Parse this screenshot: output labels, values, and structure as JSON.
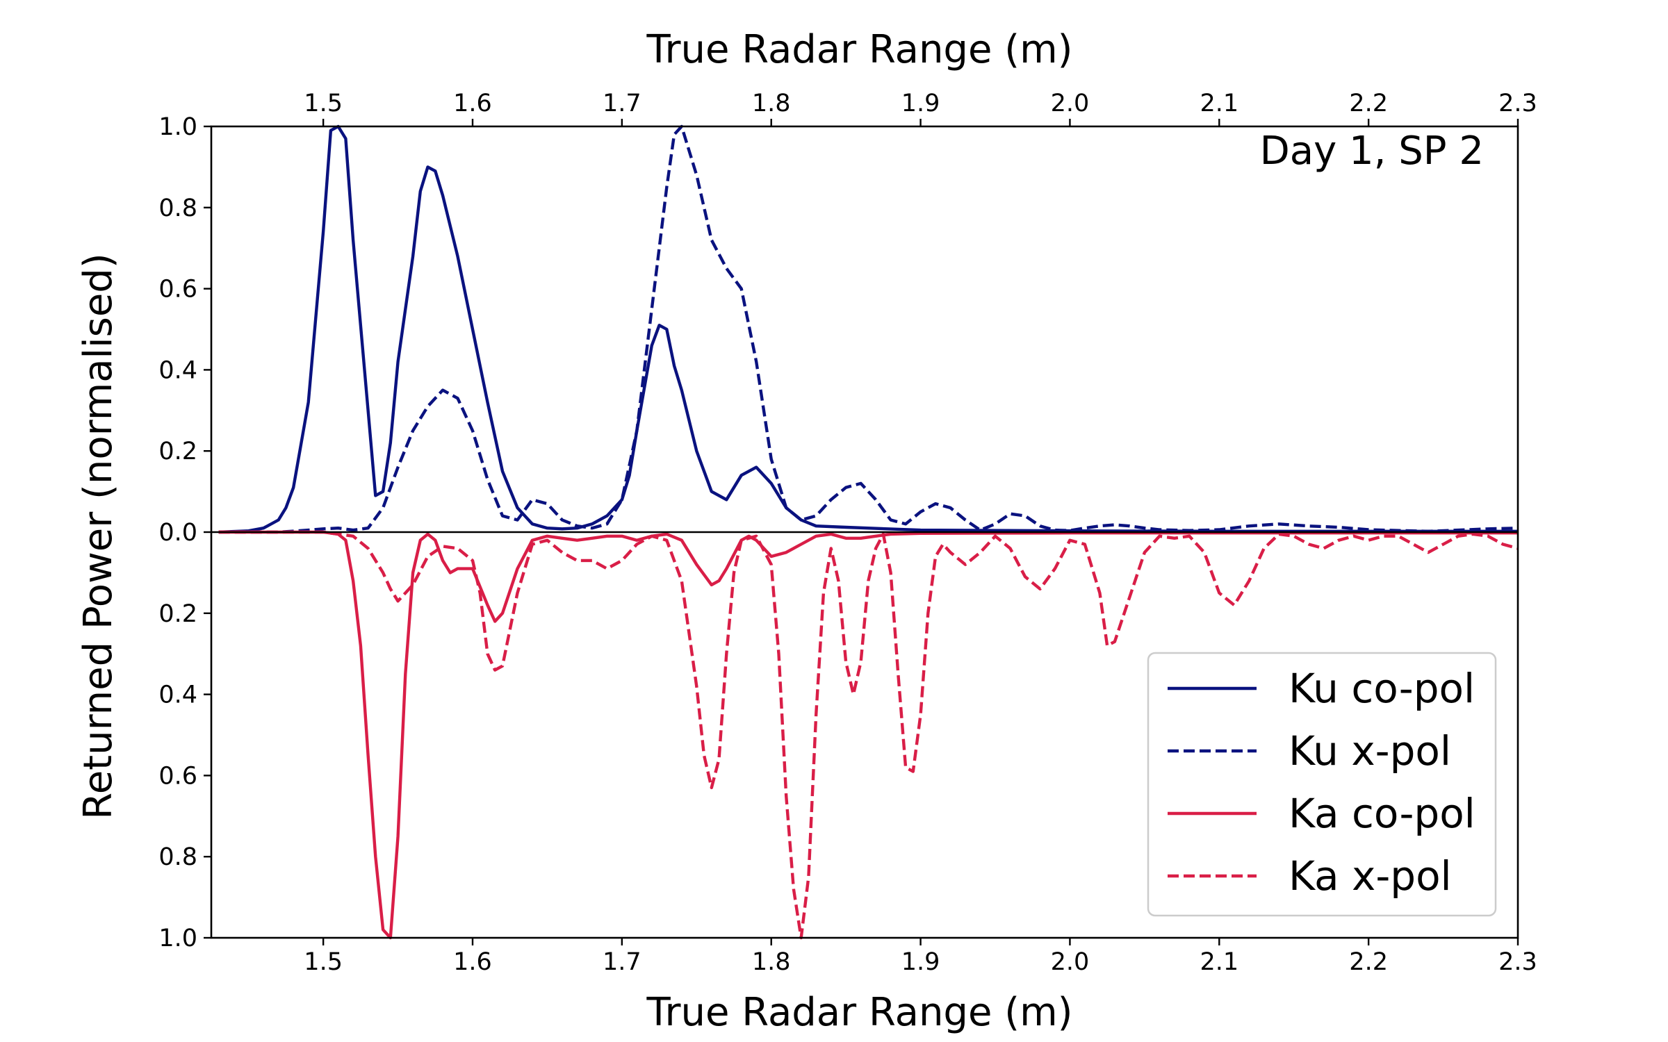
{
  "chart_data": {
    "type": "line",
    "title": "",
    "xlabel": "True Radar Range (m)",
    "xlabel_top": "True Radar Range (m)",
    "ylabel": "Returned Power (normalised)",
    "annotation": "Day 1, SP 2",
    "xlim": [
      1.425,
      2.3
    ],
    "ylim": [
      -1.0,
      1.0
    ],
    "x_ticks": [
      1.5,
      1.6,
      1.7,
      1.8,
      1.9,
      2.0,
      2.1,
      2.2,
      2.3
    ],
    "x_tick_labels": [
      "1.5",
      "1.6",
      "1.7",
      "1.8",
      "1.9",
      "2.0",
      "2.1",
      "2.2",
      "2.3"
    ],
    "y_ticks": [
      1.0,
      0.8,
      0.6,
      0.4,
      0.2,
      0.0,
      -0.2,
      -0.4,
      -0.6,
      -0.8,
      -1.0
    ],
    "y_tick_labels": [
      "1.0",
      "0.8",
      "0.6",
      "0.4",
      "0.2",
      "0.0",
      "0.2",
      "0.4",
      "0.6",
      "0.8",
      "1.0"
    ],
    "legend_position": "lower-right",
    "colors": {
      "ku": "#0a127f",
      "ka": "#d91e47"
    },
    "series": [
      {
        "name": "Ku co-pol",
        "color": "#0a127f",
        "dash": "solid",
        "x": [
          1.43,
          1.45,
          1.46,
          1.47,
          1.475,
          1.48,
          1.49,
          1.5,
          1.505,
          1.51,
          1.515,
          1.52,
          1.53,
          1.535,
          1.54,
          1.545,
          1.55,
          1.56,
          1.565,
          1.57,
          1.575,
          1.58,
          1.59,
          1.6,
          1.61,
          1.62,
          1.63,
          1.64,
          1.65,
          1.66,
          1.67,
          1.68,
          1.69,
          1.7,
          1.705,
          1.71,
          1.72,
          1.725,
          1.73,
          1.735,
          1.74,
          1.75,
          1.76,
          1.77,
          1.78,
          1.79,
          1.8,
          1.81,
          1.82,
          1.83,
          1.85,
          1.9,
          2.0,
          2.1,
          2.2,
          2.3
        ],
        "y": [
          0.0,
          0.003,
          0.01,
          0.03,
          0.06,
          0.11,
          0.32,
          0.74,
          0.99,
          1.0,
          0.97,
          0.72,
          0.3,
          0.09,
          0.1,
          0.22,
          0.42,
          0.68,
          0.84,
          0.9,
          0.89,
          0.83,
          0.68,
          0.5,
          0.32,
          0.15,
          0.06,
          0.02,
          0.01,
          0.008,
          0.01,
          0.02,
          0.04,
          0.08,
          0.14,
          0.25,
          0.46,
          0.51,
          0.5,
          0.41,
          0.35,
          0.2,
          0.1,
          0.08,
          0.14,
          0.16,
          0.12,
          0.06,
          0.03,
          0.015,
          0.012,
          0.005,
          0.003,
          0.002,
          0.002,
          0.002
        ]
      },
      {
        "name": "Ku x-pol",
        "color": "#0a127f",
        "dash": "dashed",
        "x": [
          1.43,
          1.47,
          1.49,
          1.5,
          1.51,
          1.52,
          1.53,
          1.54,
          1.55,
          1.56,
          1.57,
          1.58,
          1.59,
          1.6,
          1.61,
          1.62,
          1.63,
          1.64,
          1.65,
          1.66,
          1.67,
          1.68,
          1.69,
          1.7,
          1.71,
          1.72,
          1.73,
          1.735,
          1.74,
          1.75,
          1.76,
          1.77,
          1.78,
          1.79,
          1.8,
          1.81,
          1.82,
          1.83,
          1.84,
          1.85,
          1.86,
          1.87,
          1.88,
          1.89,
          1.9,
          1.91,
          1.92,
          1.93,
          1.94,
          1.95,
          1.96,
          1.97,
          1.98,
          1.99,
          2.0,
          2.01,
          2.02,
          2.03,
          2.04,
          2.05,
          2.06,
          2.08,
          2.1,
          2.12,
          2.14,
          2.16,
          2.18,
          2.2,
          2.22,
          2.24,
          2.26,
          2.28,
          2.3
        ],
        "y": [
          0.0,
          0.0,
          0.005,
          0.008,
          0.01,
          0.005,
          0.01,
          0.06,
          0.16,
          0.25,
          0.31,
          0.35,
          0.33,
          0.25,
          0.13,
          0.04,
          0.03,
          0.08,
          0.07,
          0.03,
          0.015,
          0.01,
          0.02,
          0.08,
          0.25,
          0.55,
          0.85,
          0.98,
          1.0,
          0.88,
          0.72,
          0.65,
          0.6,
          0.42,
          0.18,
          0.06,
          0.03,
          0.04,
          0.08,
          0.11,
          0.12,
          0.08,
          0.03,
          0.02,
          0.05,
          0.07,
          0.06,
          0.03,
          0.005,
          0.02,
          0.045,
          0.04,
          0.015,
          0.005,
          0.004,
          0.01,
          0.015,
          0.018,
          0.015,
          0.01,
          0.006,
          0.004,
          0.006,
          0.015,
          0.02,
          0.015,
          0.012,
          0.006,
          0.004,
          0.002,
          0.005,
          0.008,
          0.01
        ]
      },
      {
        "name": "Ka co-pol",
        "color": "#d91e47",
        "dash": "solid",
        "x": [
          1.43,
          1.5,
          1.51,
          1.515,
          1.52,
          1.525,
          1.53,
          1.535,
          1.54,
          1.545,
          1.55,
          1.555,
          1.56,
          1.565,
          1.57,
          1.575,
          1.58,
          1.585,
          1.59,
          1.6,
          1.61,
          1.615,
          1.62,
          1.63,
          1.64,
          1.65,
          1.66,
          1.67,
          1.68,
          1.69,
          1.7,
          1.71,
          1.72,
          1.73,
          1.74,
          1.75,
          1.76,
          1.765,
          1.77,
          1.78,
          1.785,
          1.79,
          1.8,
          1.81,
          1.82,
          1.83,
          1.84,
          1.85,
          1.86,
          1.87,
          1.88,
          1.9,
          2.0,
          2.1,
          2.2,
          2.3
        ],
        "y": [
          0.0,
          0.0,
          -0.005,
          -0.02,
          -0.12,
          -0.28,
          -0.55,
          -0.8,
          -0.98,
          -1.0,
          -0.75,
          -0.35,
          -0.1,
          -0.02,
          -0.005,
          -0.02,
          -0.07,
          -0.1,
          -0.09,
          -0.09,
          -0.18,
          -0.22,
          -0.2,
          -0.09,
          -0.02,
          -0.01,
          -0.015,
          -0.02,
          -0.015,
          -0.01,
          -0.01,
          -0.02,
          -0.01,
          -0.005,
          -0.02,
          -0.08,
          -0.13,
          -0.12,
          -0.09,
          -0.02,
          -0.01,
          -0.02,
          -0.06,
          -0.05,
          -0.03,
          -0.01,
          -0.005,
          -0.015,
          -0.015,
          -0.01,
          -0.005,
          -0.003,
          -0.002,
          -0.002,
          -0.002,
          -0.002
        ]
      },
      {
        "name": "Ka x-pol",
        "color": "#d91e47",
        "dash": "dashed",
        "x": [
          1.43,
          1.5,
          1.51,
          1.52,
          1.53,
          1.54,
          1.545,
          1.55,
          1.56,
          1.57,
          1.58,
          1.59,
          1.6,
          1.605,
          1.61,
          1.615,
          1.62,
          1.63,
          1.64,
          1.65,
          1.66,
          1.67,
          1.68,
          1.69,
          1.7,
          1.71,
          1.72,
          1.73,
          1.74,
          1.75,
          1.755,
          1.76,
          1.765,
          1.77,
          1.775,
          1.78,
          1.79,
          1.8,
          1.805,
          1.81,
          1.815,
          1.82,
          1.825,
          1.83,
          1.835,
          1.84,
          1.845,
          1.85,
          1.855,
          1.86,
          1.865,
          1.87,
          1.875,
          1.88,
          1.885,
          1.89,
          1.895,
          1.9,
          1.905,
          1.91,
          1.915,
          1.92,
          1.93,
          1.94,
          1.95,
          1.96,
          1.97,
          1.98,
          1.99,
          2.0,
          2.01,
          2.02,
          2.025,
          2.03,
          2.04,
          2.05,
          2.06,
          2.07,
          2.08,
          2.09,
          2.1,
          2.11,
          2.12,
          2.13,
          2.14,
          2.15,
          2.16,
          2.17,
          2.18,
          2.19,
          2.2,
          2.21,
          2.22,
          2.23,
          2.24,
          2.25,
          2.26,
          2.27,
          2.28,
          2.29,
          2.3
        ],
        "y": [
          0.0,
          0.0,
          -0.005,
          -0.01,
          -0.04,
          -0.1,
          -0.14,
          -0.17,
          -0.13,
          -0.06,
          -0.035,
          -0.04,
          -0.07,
          -0.15,
          -0.3,
          -0.34,
          -0.33,
          -0.15,
          -0.03,
          -0.02,
          -0.05,
          -0.07,
          -0.07,
          -0.09,
          -0.07,
          -0.03,
          -0.01,
          -0.02,
          -0.12,
          -0.38,
          -0.55,
          -0.63,
          -0.56,
          -0.3,
          -0.1,
          -0.02,
          -0.01,
          -0.08,
          -0.3,
          -0.65,
          -0.88,
          -1.0,
          -0.85,
          -0.45,
          -0.15,
          -0.04,
          -0.12,
          -0.32,
          -0.4,
          -0.32,
          -0.12,
          -0.04,
          -0.005,
          -0.1,
          -0.35,
          -0.58,
          -0.59,
          -0.45,
          -0.2,
          -0.06,
          -0.03,
          -0.05,
          -0.08,
          -0.05,
          -0.01,
          -0.04,
          -0.11,
          -0.14,
          -0.09,
          -0.02,
          -0.03,
          -0.15,
          -0.28,
          -0.27,
          -0.16,
          -0.05,
          -0.01,
          -0.015,
          -0.01,
          -0.05,
          -0.15,
          -0.18,
          -0.12,
          -0.04,
          -0.005,
          -0.01,
          -0.03,
          -0.04,
          -0.02,
          -0.01,
          -0.02,
          -0.01,
          -0.01,
          -0.03,
          -0.05,
          -0.03,
          -0.01,
          -0.005,
          -0.01,
          -0.03,
          -0.04
        ]
      }
    ]
  }
}
